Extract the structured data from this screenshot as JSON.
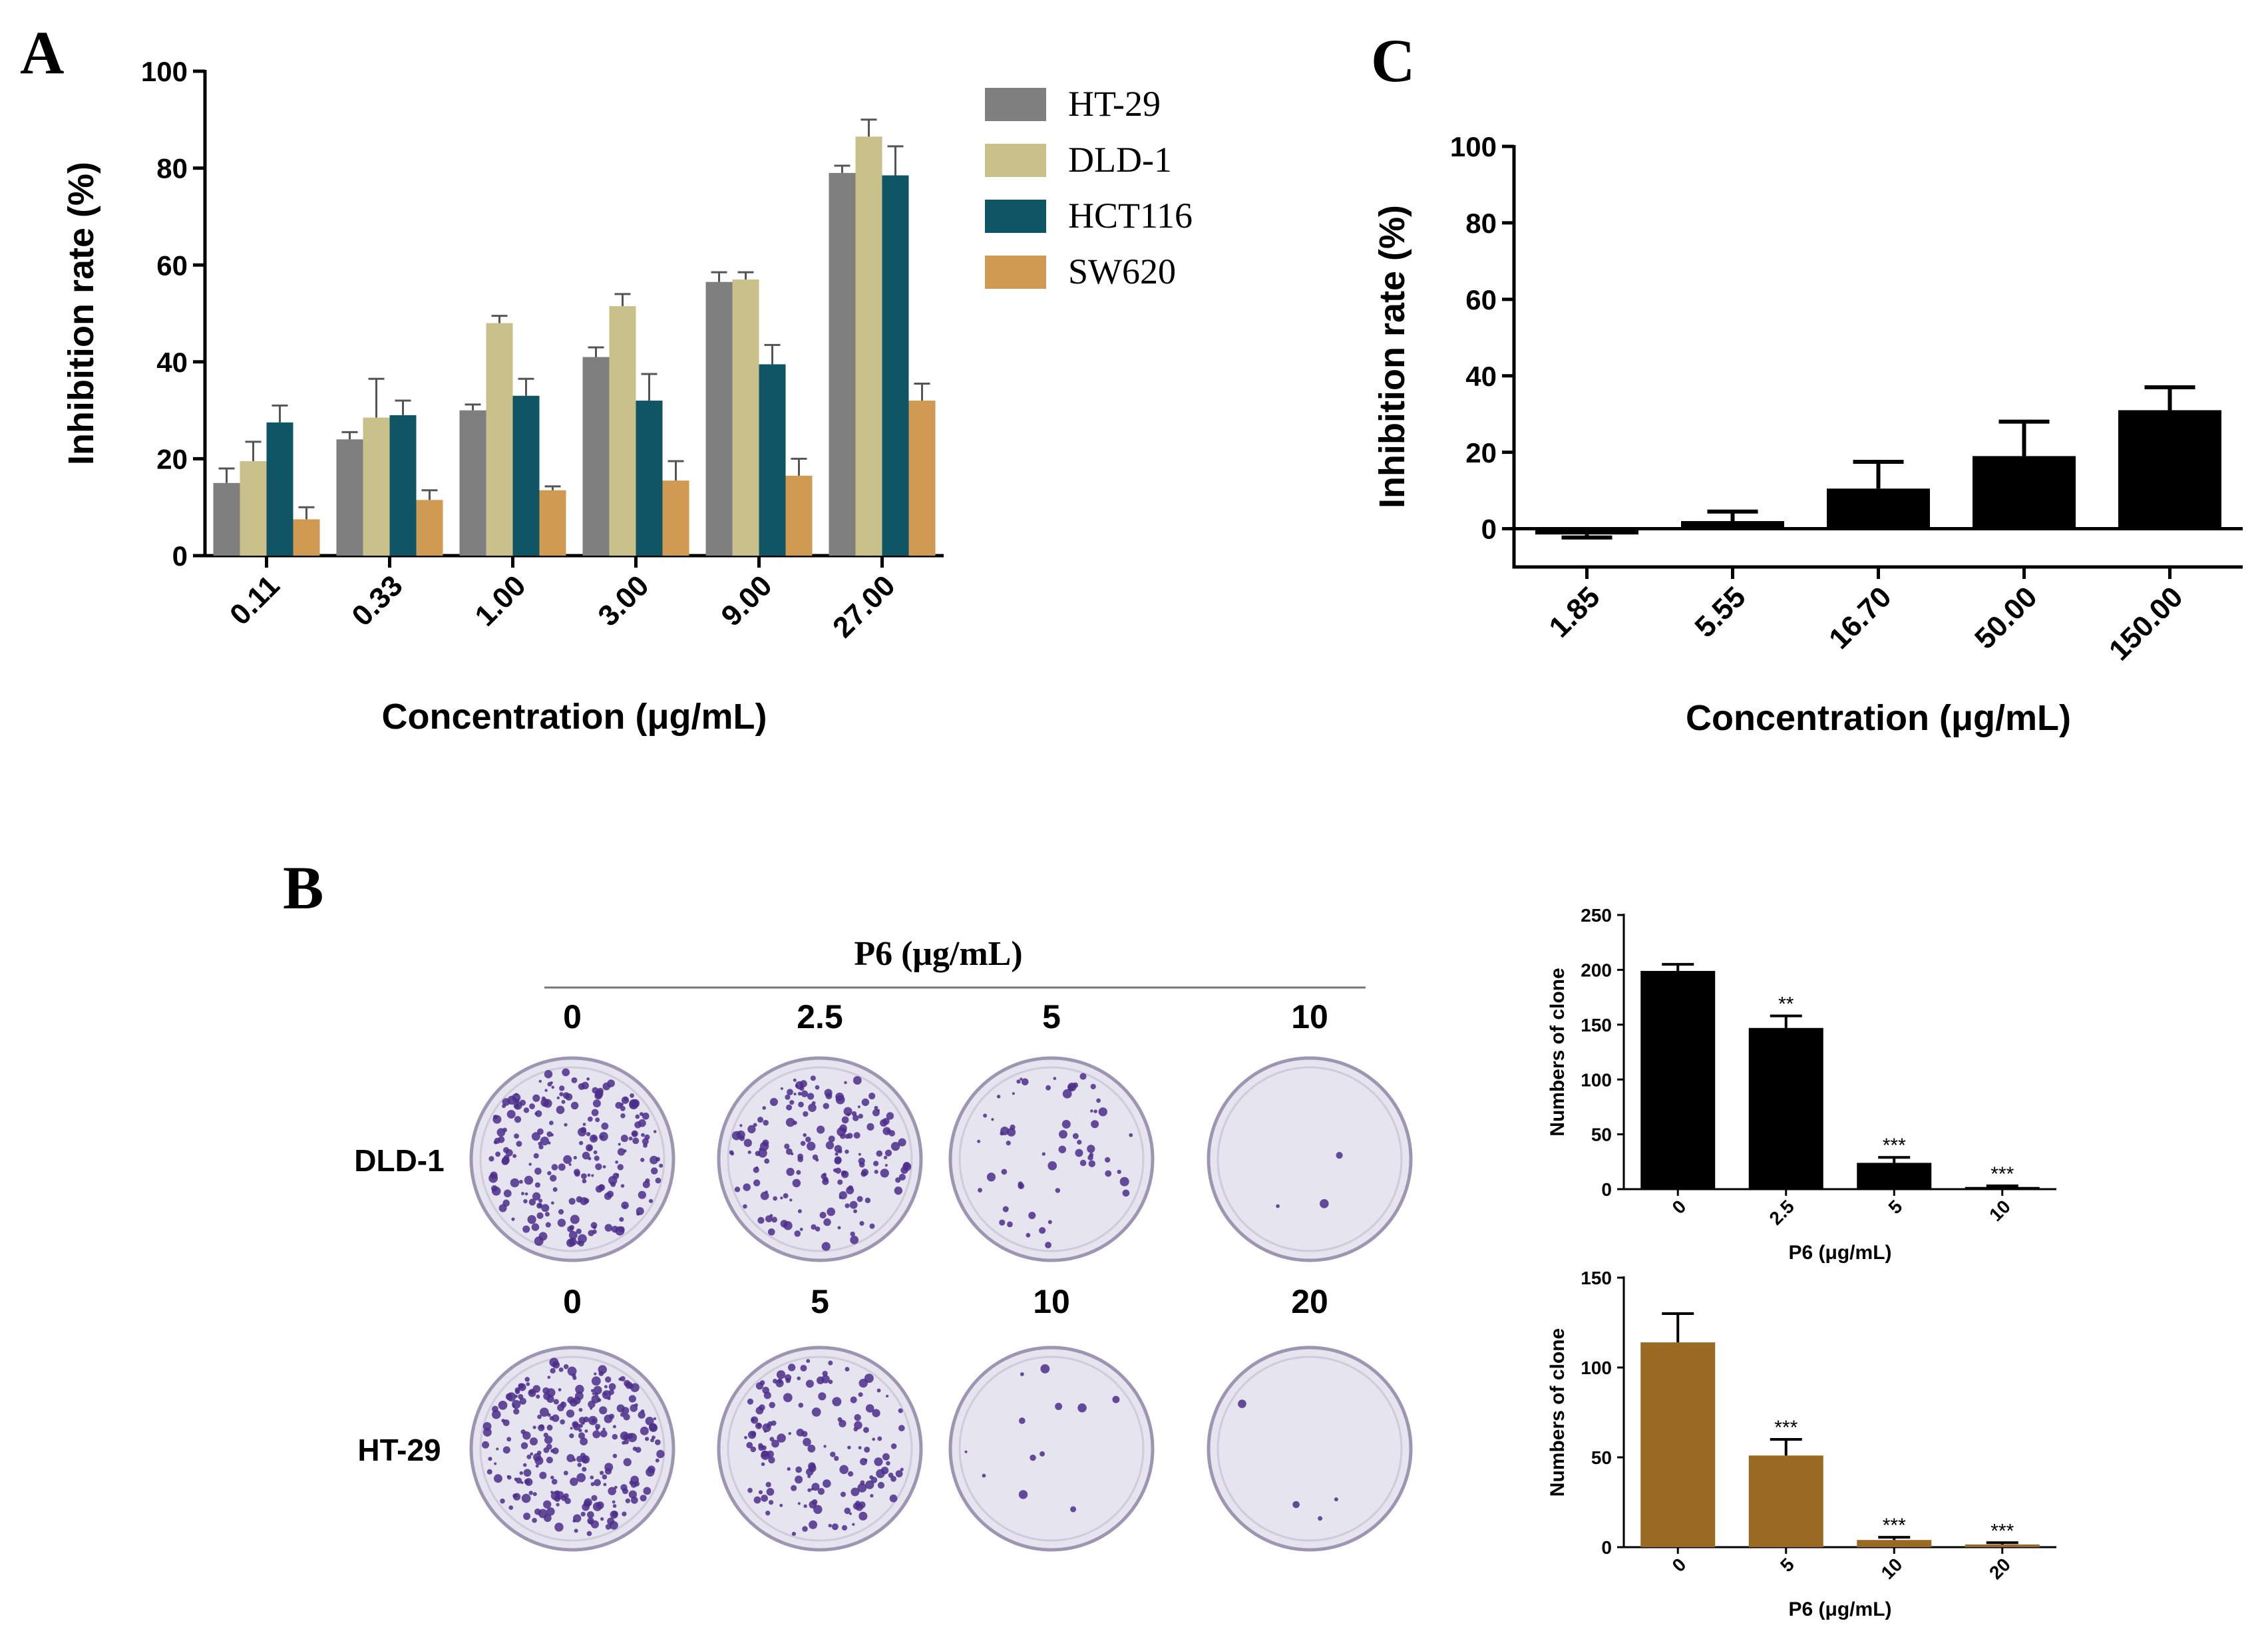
{
  "panel_labels": {
    "a": "A",
    "b": "B",
    "c": "C"
  },
  "colors": {
    "ht29": "#7f7f7f",
    "dld1": "#c9c08a",
    "hct116": "#0f5566",
    "sw620": "#d09a52",
    "black": "#000000",
    "brown": "#9a6a22",
    "colony_purple": "#4b2e8a",
    "plate_bg": "#e6e4ee"
  },
  "chart_data": [
    {
      "id": "A",
      "type": "bar",
      "title": "",
      "xlabel": "Concentration (μg/mL)",
      "ylabel": "Inhibition rate (%)",
      "ylim": [
        0,
        100
      ],
      "yticks": [
        0,
        20,
        40,
        60,
        80,
        100
      ],
      "legend_position": "top-right",
      "categories": [
        "0.11",
        "0.33",
        "1.00",
        "3.00",
        "9.00",
        "27.00"
      ],
      "series": [
        {
          "name": "HT-29",
          "color_key": "ht29",
          "values": [
            15,
            24,
            30,
            41,
            56.5,
            79
          ],
          "errors": [
            3,
            1.5,
            1.2,
            2,
            2,
            1.5
          ]
        },
        {
          "name": "DLD-1",
          "color_key": "dld1",
          "values": [
            19.5,
            28.5,
            48,
            51.5,
            57,
            86.5
          ],
          "errors": [
            4,
            8,
            1.5,
            2.5,
            1.5,
            3.5
          ]
        },
        {
          "name": "HCT116",
          "color_key": "hct116",
          "values": [
            27.5,
            29,
            33,
            32,
            39.5,
            78.5
          ],
          "errors": [
            3.5,
            3,
            3.5,
            5.5,
            4,
            6
          ]
        },
        {
          "name": "SW620",
          "color_key": "sw620",
          "values": [
            7.5,
            11.5,
            13.5,
            15.5,
            16.5,
            32
          ],
          "errors": [
            2.5,
            2,
            0.8,
            4,
            3.5,
            3.5
          ]
        }
      ]
    },
    {
      "id": "C",
      "type": "bar",
      "title": "",
      "xlabel": "Concentration (μg/mL)",
      "ylabel": "Inhibition rate (%)",
      "ylim": [
        -10,
        100
      ],
      "yticks": [
        0,
        20,
        40,
        60,
        80,
        100
      ],
      "categories": [
        "1.85",
        "5.55",
        "16.70",
        "50.00",
        "150.00"
      ],
      "series": [
        {
          "name": "",
          "color_key": "black",
          "values": [
            -1.5,
            2,
            10.5,
            19,
            31
          ],
          "errors": [
            0.8,
            2.5,
            7,
            9,
            6
          ]
        }
      ]
    },
    {
      "id": "B-DLD1",
      "type": "bar",
      "title": "",
      "xlabel": "P6 (μg/mL)",
      "ylabel": "Numbers of clone",
      "ylim": [
        0,
        250
      ],
      "yticks": [
        0,
        50,
        100,
        150,
        200,
        250
      ],
      "categories": [
        "0",
        "2.5",
        "5",
        "10"
      ],
      "series": [
        {
          "name": "DLD-1",
          "color_key": "black",
          "values": [
            199,
            147,
            24,
            2
          ],
          "errors": [
            6,
            11,
            5,
            1
          ],
          "significance": [
            "",
            "**",
            "***",
            "***"
          ]
        }
      ]
    },
    {
      "id": "B-HT29",
      "type": "bar",
      "title": "",
      "xlabel": "P6 (μg/mL)",
      "ylabel": "Numbers of clone",
      "ylim": [
        0,
        150
      ],
      "yticks": [
        0,
        50,
        100,
        150
      ],
      "categories": [
        "0",
        "5",
        "10",
        "20"
      ],
      "series": [
        {
          "name": "HT-29",
          "color_key": "brown",
          "values": [
            114,
            51,
            4,
            1.5
          ],
          "errors": [
            16,
            9,
            1.5,
            1
          ],
          "significance": [
            "",
            "***",
            "***",
            "***"
          ]
        }
      ]
    }
  ],
  "colony_panel": {
    "header": "P6 (μg/mL)",
    "rows": [
      {
        "cell_line": "DLD-1",
        "concentrations": [
          "0",
          "2.5",
          "5",
          "10"
        ],
        "density": [
          220,
          170,
          60,
          3
        ]
      },
      {
        "cell_line": "HT-29",
        "concentrations": [
          "0",
          "5",
          "10",
          "20"
        ],
        "density": [
          260,
          150,
          12,
          4
        ]
      }
    ]
  }
}
